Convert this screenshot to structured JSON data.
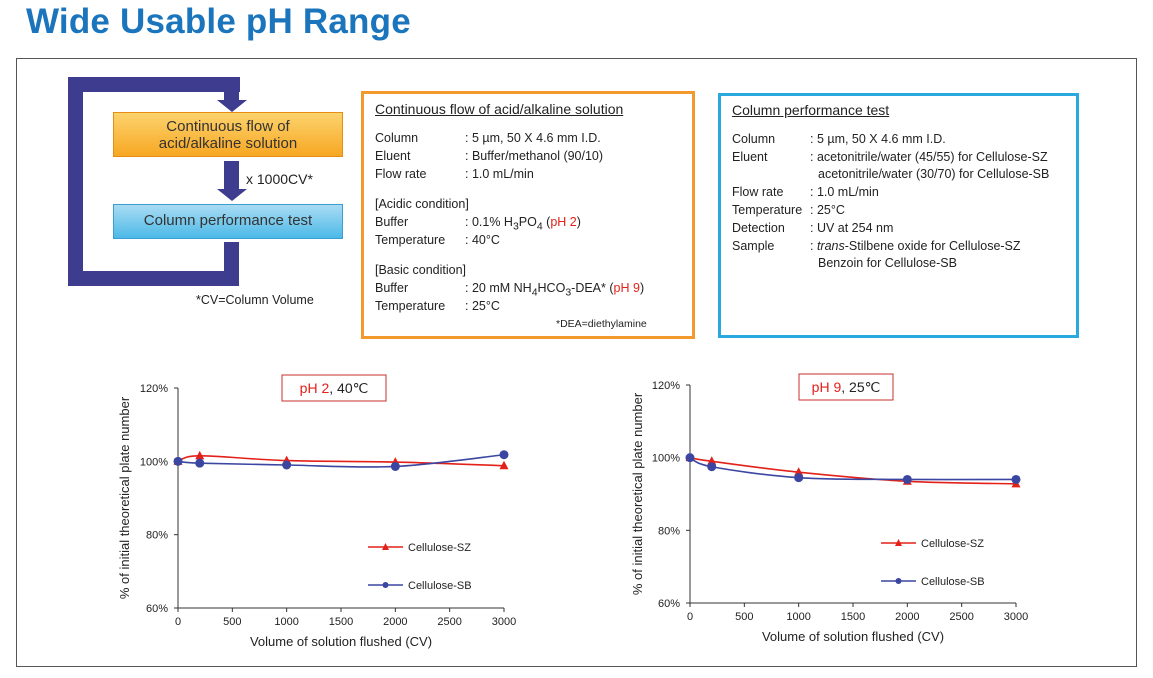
{
  "title": "Wide Usable pH Range",
  "flow": {
    "step1": "Continuous flow of acid/alkaline solution",
    "step1_line1": "Continuous flow of",
    "step1_line2": "acid/alkaline solution",
    "repeat": "x 1000CV*",
    "step2": "Column performance test",
    "footnote": "*CV=Column Volume"
  },
  "flow_box": {
    "title": "Continuous flow of acid/alkaline solution",
    "rows": [
      {
        "label": "Column",
        "value": ": 5 µm, 50 X 4.6 mm I.D."
      },
      {
        "label": "Eluent",
        "value": ": Buffer/methanol (90/10)"
      },
      {
        "label": "Flow rate",
        "value": ": 1.0 mL/min"
      }
    ],
    "acidic_header": "[Acidic condition]",
    "acidic_buffer_label": "Buffer",
    "acidic_buffer_prefix": ": 0.1% H",
    "acidic_buffer_sub1": "3",
    "acidic_buffer_mid": "PO",
    "acidic_buffer_sub2": "4",
    "acidic_buffer_open": " (",
    "acidic_buffer_ph": "pH 2",
    "acidic_buffer_close": ")",
    "acidic_temp_label": "Temperature",
    "acidic_temp_value": ": 40°C",
    "basic_header": "[Basic condition]",
    "basic_buffer_label": "Buffer",
    "basic_buffer_prefix": ": 20 mM NH",
    "basic_buffer_sub1": "4",
    "basic_buffer_mid": "HCO",
    "basic_buffer_sub2": "3",
    "basic_buffer_rest": "-DEA* (",
    "basic_buffer_ph": "pH 9",
    "basic_buffer_close": ")",
    "basic_temp_label": "Temperature",
    "basic_temp_value": ": 25°C",
    "footnote": "*DEA=diethylamine"
  },
  "test_box": {
    "title": "Column performance test",
    "column_label": "Column",
    "column_value": ": 5 µm, 50 X 4.6 mm I.D.",
    "eluent_label": "Eluent",
    "eluent_value1": ": acetonitrile/water (45/55) for Cellulose-SZ",
    "eluent_value2": "acetonitrile/water (30/70) for Cellulose-SB",
    "flow_label": "Flow rate",
    "flow_value": ": 1.0 mL/min",
    "temp_label": "Temperature",
    "temp_value": ": 25°C",
    "detection_label": "Detection",
    "detection_value": ": UV at 254 nm",
    "sample_label": "Sample",
    "sample_prefix": ": ",
    "sample_italic": "trans",
    "sample_value1": "-Stilbene oxide for Cellulose-SZ",
    "sample_value2": "Benzoin for Cellulose-SB"
  },
  "colors": {
    "sz": "#e32119",
    "sb": "#3a46a0",
    "title": "#1b75bc",
    "orange": "#f39a2e",
    "blue": "#2aa9de"
  },
  "chart_data": [
    {
      "type": "line",
      "label_ph": "pH 2",
      "label_rest": ", 40℃",
      "xlabel": "Volume of solution flushed (CV)",
      "ylabel": "% of initial theoretical plate number",
      "xlim": [
        0,
        3000
      ],
      "ylim": [
        60,
        120
      ],
      "xticks": [
        "0",
        "500",
        "1000",
        "1500",
        "2000",
        "2500",
        "3000"
      ],
      "yticks": [
        "60%",
        "80%",
        "100%",
        "120%"
      ],
      "series": [
        {
          "name": "Cellulose-SZ",
          "marker": "triangle",
          "x": [
            0,
            200,
            1000,
            2000,
            3000
          ],
          "y": [
            100,
            101.5,
            100.2,
            99.8,
            98.8
          ]
        },
        {
          "name": "Cellulose-SB",
          "marker": "circle",
          "x": [
            0,
            200,
            1000,
            2000,
            3000
          ],
          "y": [
            100,
            99.5,
            99,
            98.6,
            101.8
          ]
        }
      ]
    },
    {
      "type": "line",
      "label_ph": "pH 9",
      "label_rest": ", 25℃",
      "xlabel": "Volume of solution flushed (CV)",
      "ylabel": "% of initial theoretical plate number",
      "xlim": [
        0,
        3000
      ],
      "ylim": [
        60,
        120
      ],
      "xticks": [
        "0",
        "500",
        "1000",
        "1500",
        "2000",
        "2500",
        "3000"
      ],
      "yticks": [
        "60%",
        "80%",
        "100%",
        "120%"
      ],
      "series": [
        {
          "name": "Cellulose-SZ",
          "marker": "triangle",
          "x": [
            0,
            200,
            1000,
            2000,
            3000
          ],
          "y": [
            100,
            99,
            96,
            93.5,
            92.8
          ]
        },
        {
          "name": "Cellulose-SB",
          "marker": "circle",
          "x": [
            0,
            200,
            1000,
            2000,
            3000
          ],
          "y": [
            100,
            97.5,
            94.5,
            94,
            94
          ]
        }
      ]
    }
  ]
}
